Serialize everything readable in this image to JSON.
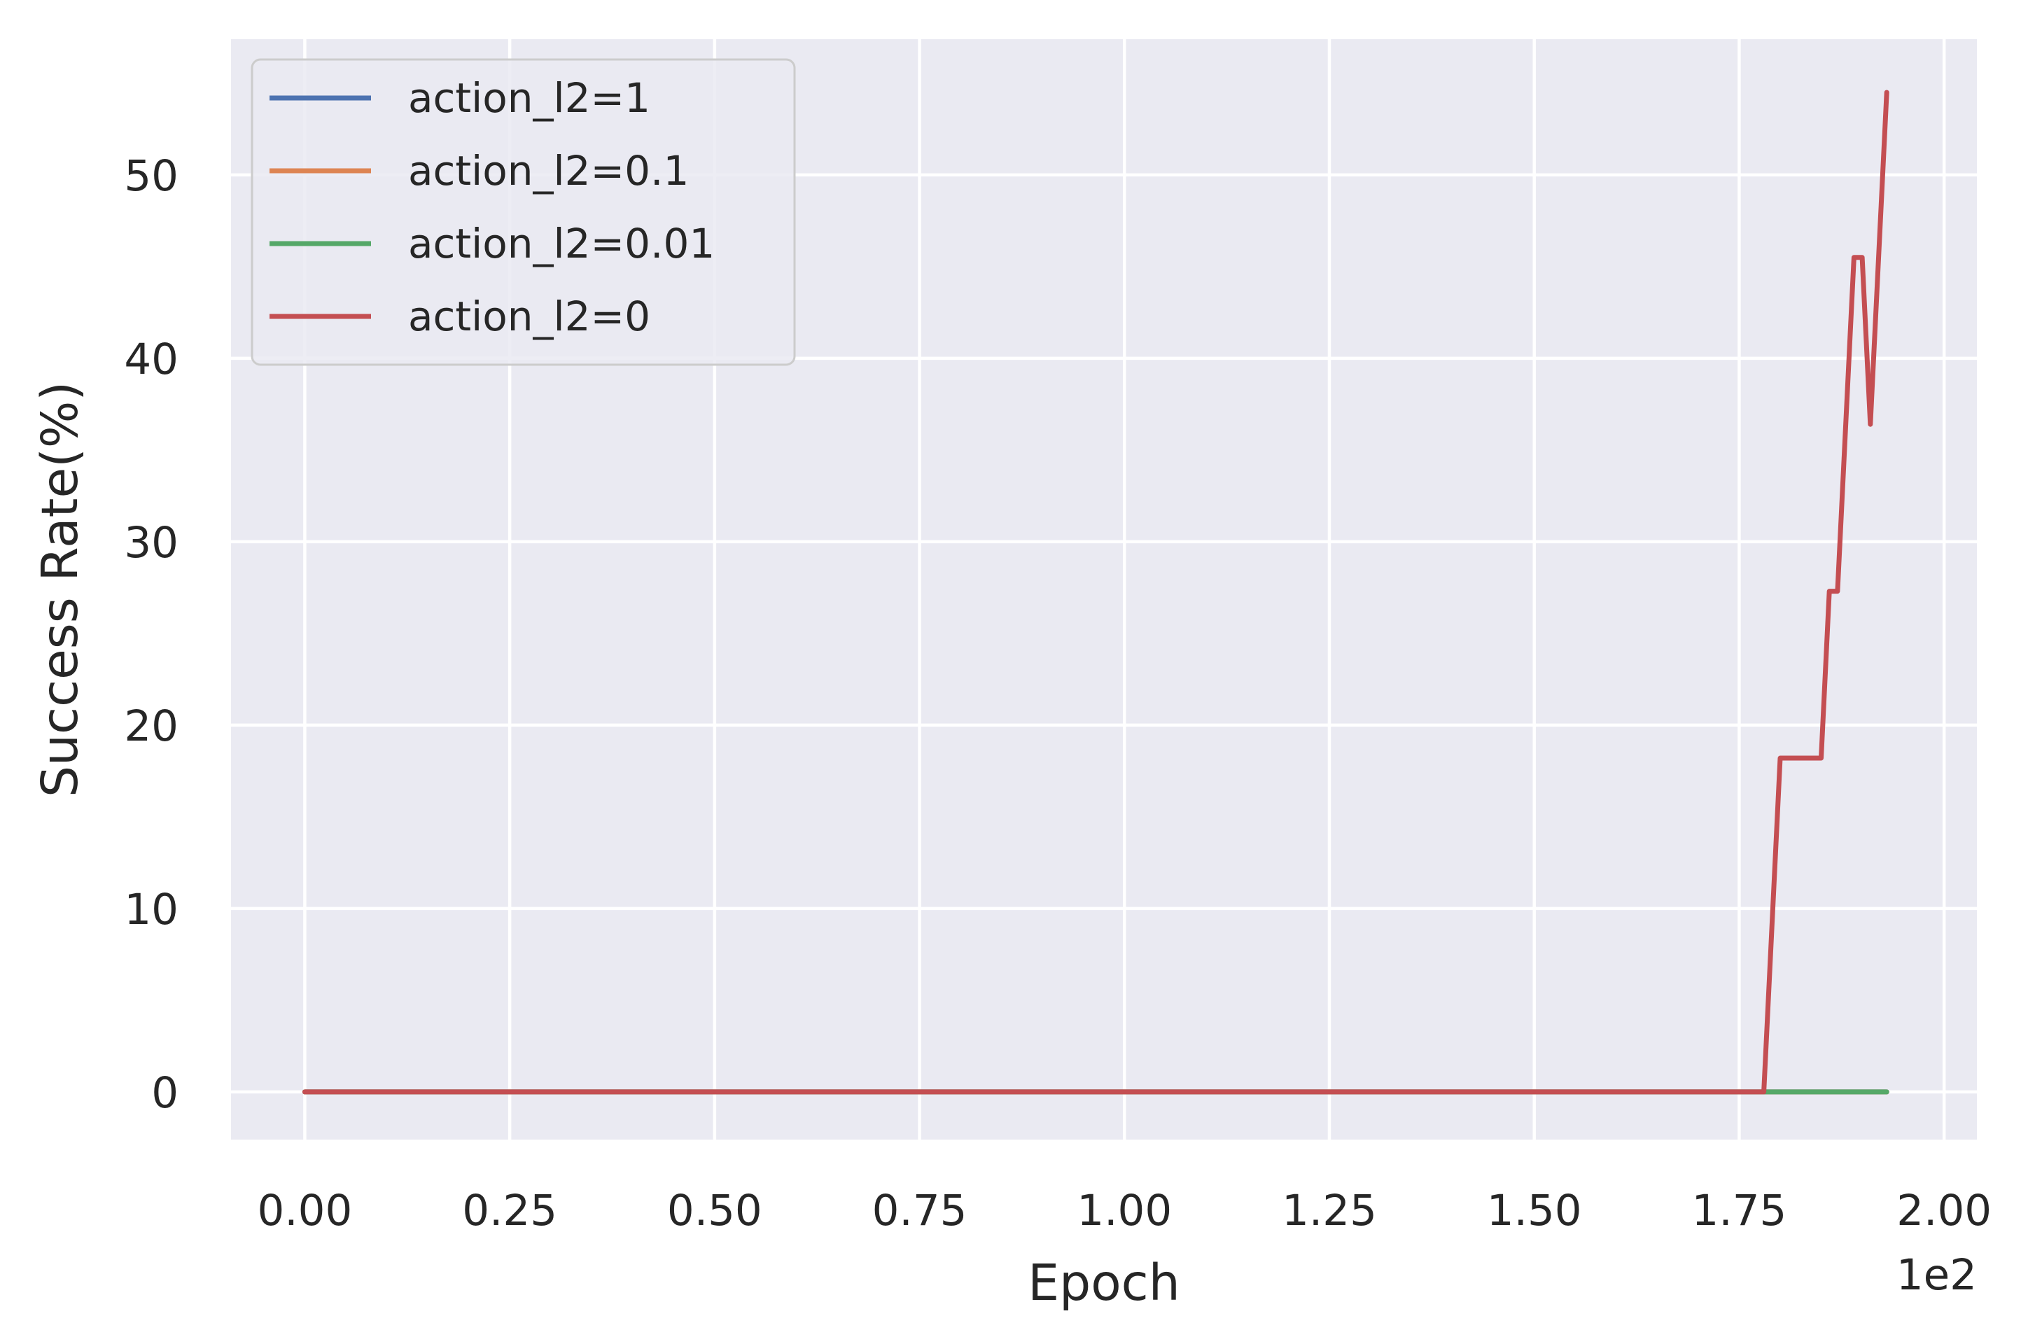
{
  "chart_data": {
    "type": "line",
    "title": "",
    "xlabel": "Epoch",
    "ylabel": "Success Rate(%)",
    "x_offset_text": "1e2",
    "x_scale_factor": 100,
    "xlim": [
      -0.09,
      2.04
    ],
    "ylim": [
      -2.6,
      57.4
    ],
    "xticks": [
      0,
      0.25,
      0.5,
      0.75,
      1.0,
      1.25,
      1.5,
      1.75,
      2.0
    ],
    "xtick_labels": [
      "0.00",
      "0.25",
      "0.50",
      "0.75",
      "1.00",
      "1.25",
      "1.50",
      "1.75",
      "2.00"
    ],
    "yticks": [
      0,
      10,
      20,
      30,
      40,
      50
    ],
    "ytick_labels": [
      "0",
      "10",
      "20",
      "30",
      "40",
      "50"
    ],
    "grid": true,
    "legend_position": "top-left",
    "series": [
      {
        "name": "action_l2=1",
        "color": "#4c72b0",
        "x": [
          0,
          1.93
        ],
        "y": [
          0,
          0
        ]
      },
      {
        "name": "action_l2=0.1",
        "color": "#dd8452",
        "x": [
          0,
          1.93
        ],
        "y": [
          0,
          0
        ]
      },
      {
        "name": "action_l2=0.01",
        "color": "#55a868",
        "x": [
          0,
          1.93
        ],
        "y": [
          0,
          0
        ]
      },
      {
        "name": "action_l2=0",
        "color": "#c44e52",
        "x": [
          0,
          1.78,
          1.8,
          1.85,
          1.86,
          1.87,
          1.89,
          1.9,
          1.91,
          1.93
        ],
        "y": [
          0,
          0,
          18.2,
          18.2,
          27.3,
          27.3,
          45.5,
          45.5,
          36.4,
          54.5
        ]
      }
    ]
  }
}
